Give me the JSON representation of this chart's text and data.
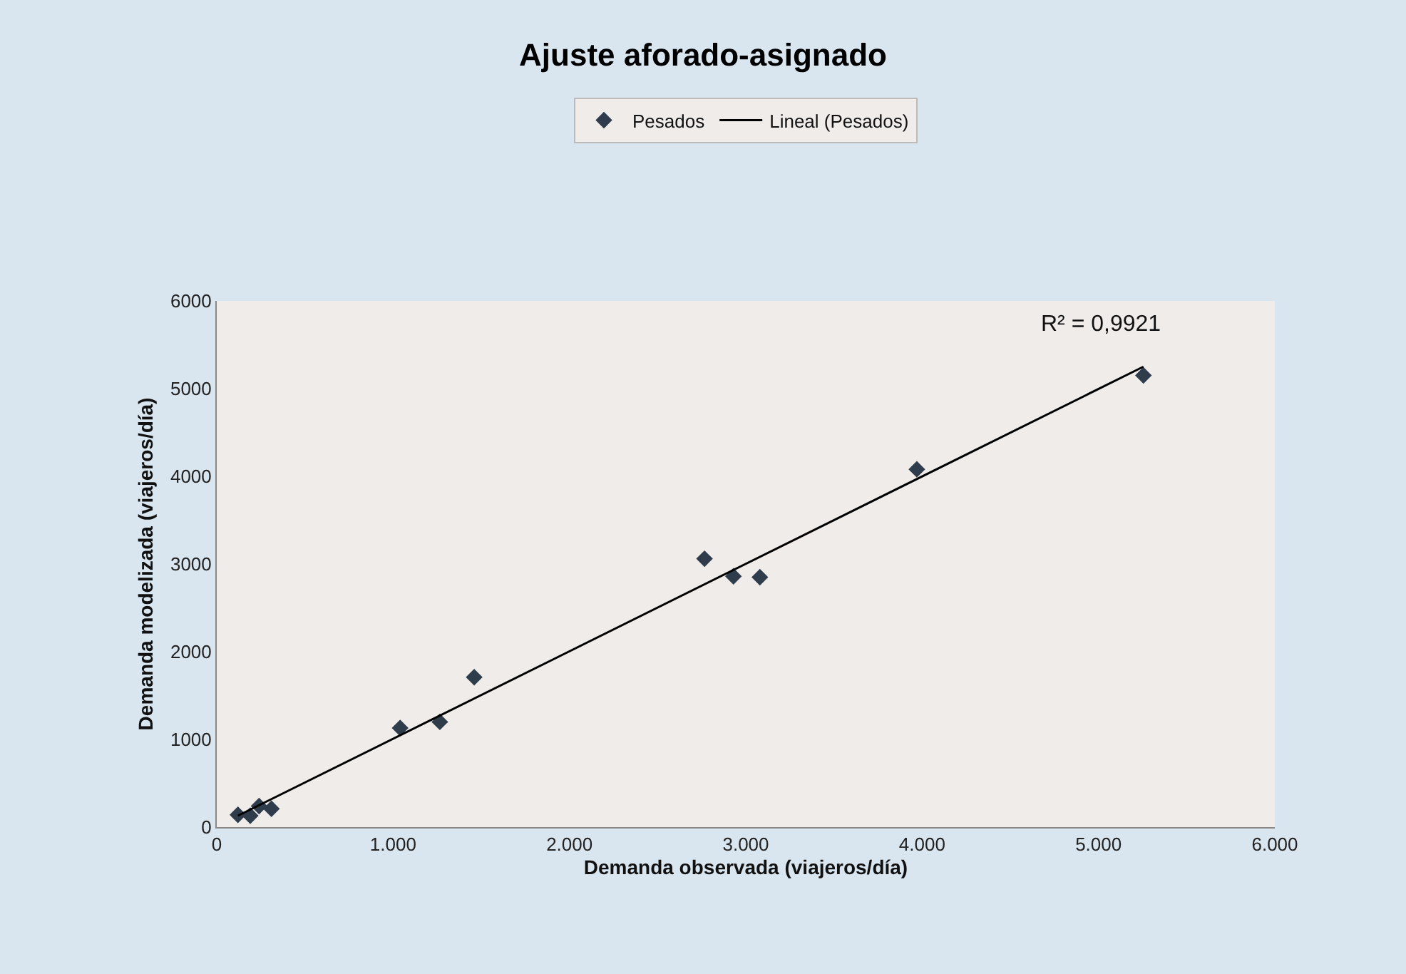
{
  "chart_data": {
    "type": "scatter",
    "title": "Ajuste aforado-asignado",
    "xlabel": "Demanda observada (viajeros/día)",
    "ylabel": "Demanda modelizada (viajeros/día)",
    "series": [
      {
        "name": "Pesados",
        "marker": "diamond",
        "color": "#2f3c4b",
        "x": [
          120,
          190,
          240,
          310,
          1040,
          1265,
          1460,
          2766,
          2930,
          3080,
          3970,
          5255
        ],
        "values": [
          140,
          130,
          240,
          210,
          1130,
          1200,
          1710,
          3060,
          2860,
          2850,
          4080,
          5150
        ]
      },
      {
        "name": "Lineal (Pesados)",
        "type": "line",
        "marker": "none",
        "line_style": "solid",
        "color": "#000000",
        "x": [
          120,
          5255
        ],
        "values": [
          130,
          5250
        ]
      }
    ],
    "annotations": [
      "R² = 0,9921"
    ],
    "xlim": [
      0,
      6000
    ],
    "xticks": [
      0,
      {
        "value": 1000,
        "label": "1.000"
      },
      {
        "value": 2000,
        "label": "2.000"
      },
      {
        "value": 3000,
        "label": "3.000"
      },
      {
        "value": 4000,
        "label": "4.000"
      },
      {
        "value": 5000,
        "label": "5.000"
      },
      {
        "value": 6000,
        "label": "6.000"
      }
    ],
    "ylim": [
      0,
      6000
    ],
    "yticks": [
      0,
      1000,
      2000,
      3000,
      4000,
      5000,
      6000
    ],
    "grid": false,
    "legend": "top"
  }
}
